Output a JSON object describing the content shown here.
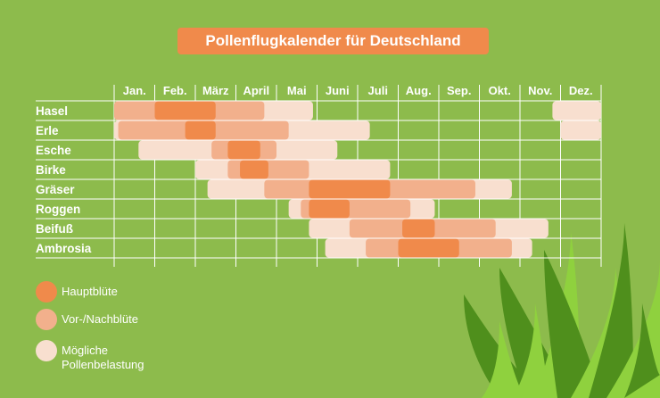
{
  "chart_data": {
    "type": "gantt",
    "title": "Pollenflugkalender für Deutschland",
    "months": [
      "Jan.",
      "Feb.",
      "März",
      "April",
      "Mai",
      "Juni",
      "Juli",
      "Aug.",
      "Sep.",
      "Okt.",
      "Nov.",
      "Dez."
    ],
    "x_unit": "month (0 = start of January, 12 = end of December)",
    "categories": [
      {
        "label": "Hauptblüte",
        "color": "#f08a4b"
      },
      {
        "label": "Vor-/Nachblüte",
        "color": "#f2b08c"
      },
      {
        "label": "Mögliche Pollenbelastung",
        "lines": [
          "Mögliche",
          "Pollenbelastung"
        ],
        "color": "#f8dfcf"
      }
    ],
    "plants": [
      {
        "name": "Hasel",
        "periods": [
          {
            "category": 2,
            "start": 0.0,
            "end": 4.9
          },
          {
            "category": 2,
            "start": 10.8,
            "end": 12.0
          },
          {
            "category": 1,
            "start": 0.0,
            "end": 3.7
          },
          {
            "category": 0,
            "start": 1.0,
            "end": 2.5
          }
        ]
      },
      {
        "name": "Erle",
        "periods": [
          {
            "category": 2,
            "start": 0.0,
            "end": 6.3
          },
          {
            "category": 2,
            "start": 11.0,
            "end": 12.0
          },
          {
            "category": 1,
            "start": 0.1,
            "end": 4.3
          },
          {
            "category": 0,
            "start": 1.75,
            "end": 2.5
          }
        ]
      },
      {
        "name": "Esche",
        "periods": [
          {
            "category": 2,
            "start": 0.6,
            "end": 5.5
          },
          {
            "category": 1,
            "start": 2.4,
            "end": 4.0
          },
          {
            "category": 0,
            "start": 2.8,
            "end": 3.6
          }
        ]
      },
      {
        "name": "Birke",
        "periods": [
          {
            "category": 2,
            "start": 2.0,
            "end": 6.8
          },
          {
            "category": 1,
            "start": 2.8,
            "end": 4.8
          },
          {
            "category": 0,
            "start": 3.1,
            "end": 3.8
          }
        ]
      },
      {
        "name": "Gräser",
        "periods": [
          {
            "category": 2,
            "start": 2.3,
            "end": 9.8
          },
          {
            "category": 1,
            "start": 3.7,
            "end": 8.9
          },
          {
            "category": 0,
            "start": 4.8,
            "end": 6.8
          }
        ]
      },
      {
        "name": "Roggen",
        "periods": [
          {
            "category": 2,
            "start": 4.3,
            "end": 7.9
          },
          {
            "category": 1,
            "start": 4.6,
            "end": 7.3
          },
          {
            "category": 0,
            "start": 4.8,
            "end": 5.8
          }
        ]
      },
      {
        "name": "Beifuß",
        "periods": [
          {
            "category": 2,
            "start": 4.8,
            "end": 10.7
          },
          {
            "category": 1,
            "start": 5.8,
            "end": 9.4
          },
          {
            "category": 0,
            "start": 7.1,
            "end": 7.9
          }
        ]
      },
      {
        "name": "Ambrosia",
        "periods": [
          {
            "category": 2,
            "start": 5.2,
            "end": 10.3
          },
          {
            "category": 1,
            "start": 6.2,
            "end": 9.8
          },
          {
            "category": 0,
            "start": 7.0,
            "end": 8.5
          }
        ]
      }
    ],
    "grid": true
  },
  "colors": {
    "background": "#8dbb4c",
    "title_box": "#f08a4b",
    "grid": "#ffffff",
    "text": "#ffffff",
    "grass_dark": "#4f8f1c",
    "grass_light": "#8fd13e"
  }
}
